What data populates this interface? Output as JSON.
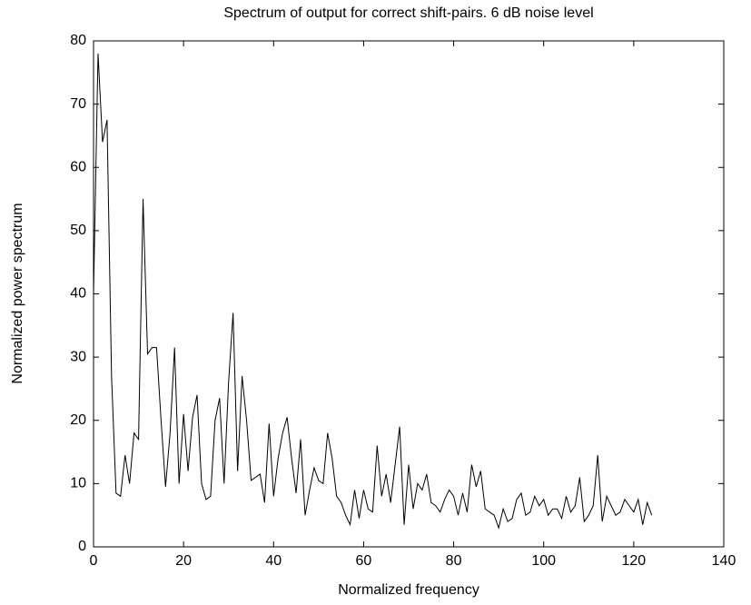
{
  "chart_data": {
    "type": "line",
    "title": "Spectrum of output for correct shift-pairs. 6 dB noise level",
    "xlabel": "Normalized frequency",
    "ylabel": "Normalized power spectrum",
    "x": [
      0,
      1,
      2,
      3,
      4,
      5,
      6,
      7,
      8,
      9,
      10,
      11,
      12,
      13,
      14,
      15,
      16,
      17,
      18,
      19,
      20,
      21,
      22,
      23,
      24,
      25,
      26,
      27,
      28,
      29,
      30,
      31,
      32,
      33,
      34,
      35,
      36,
      37,
      38,
      39,
      40,
      41,
      42,
      43,
      44,
      45,
      46,
      47,
      48,
      49,
      50,
      51,
      52,
      53,
      54,
      55,
      56,
      57,
      58,
      59,
      60,
      61,
      62,
      63,
      64,
      65,
      66,
      67,
      68,
      69,
      70,
      71,
      72,
      73,
      74,
      75,
      76,
      77,
      78,
      79,
      80,
      81,
      82,
      83,
      84,
      85,
      86,
      87,
      88,
      89,
      90,
      91,
      92,
      93,
      94,
      95,
      96,
      97,
      98,
      99,
      100,
      101,
      102,
      103,
      104,
      105,
      106,
      107,
      108,
      109,
      110,
      111,
      112,
      113,
      114,
      115,
      116,
      117,
      118,
      119,
      120,
      121,
      122,
      123,
      124
    ],
    "series": [
      {
        "color": "#000000",
        "values": [
          40,
          78,
          64,
          67.5,
          27,
          8.5,
          8,
          14.5,
          10,
          18,
          17,
          55,
          30.5,
          31.5,
          31.5,
          20,
          9.5,
          18,
          31.5,
          10,
          21,
          12,
          20.5,
          24,
          10,
          7.5,
          8,
          20,
          23.5,
          10,
          26,
          37,
          12,
          27,
          20,
          10.5,
          11,
          11.5,
          7,
          19.5,
          8,
          14,
          18,
          20.5,
          14,
          8.5,
          17,
          5,
          9,
          12.5,
          10.5,
          10,
          18,
          14,
          8,
          7,
          5,
          3.5,
          9,
          4.5,
          9,
          6,
          5.5,
          16,
          8,
          11.5,
          7,
          13,
          19,
          3.5,
          13,
          6,
          10,
          9,
          11.5,
          7,
          6.5,
          5.5,
          7.5,
          9,
          8,
          5,
          8.5,
          5.5,
          13,
          9.5,
          12,
          6,
          5.5,
          5,
          3,
          6,
          4,
          4.5,
          7.5,
          8.5,
          5,
          5.5,
          8,
          6.5,
          7.5,
          5,
          6,
          6,
          4.5,
          8,
          5.5,
          6.5,
          11,
          4,
          5,
          6.5,
          14.5,
          4,
          8,
          6.5,
          5,
          5.5,
          7.5,
          6.5,
          5.5,
          7.5,
          3.5,
          7,
          5
        ]
      }
    ],
    "xlim": [
      0,
      140
    ],
    "xticks": [
      0,
      20,
      40,
      60,
      80,
      100,
      120,
      140
    ],
    "ylim": [
      0,
      80
    ],
    "yticks": [
      0,
      10,
      20,
      30,
      40,
      50,
      60,
      70,
      80
    ]
  }
}
